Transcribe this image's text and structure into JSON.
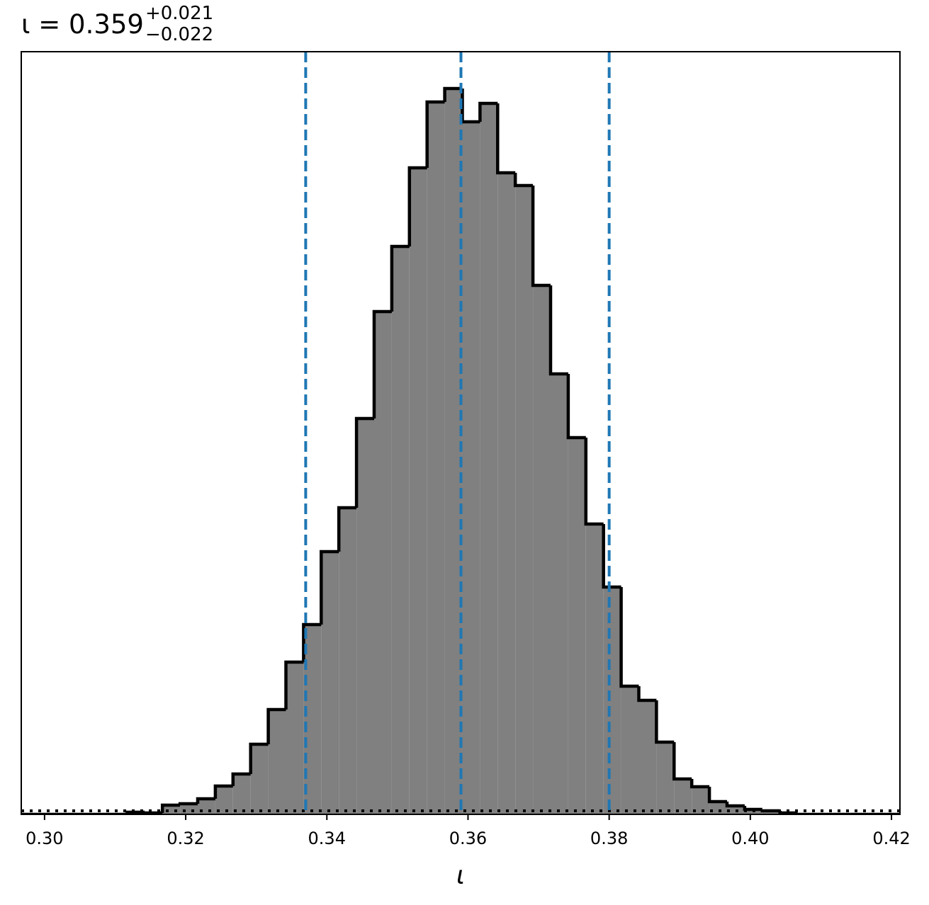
{
  "chart_data": {
    "type": "histogram",
    "title": {
      "main": "ι = 0.359",
      "upper": "+0.021",
      "lower": "−0.022"
    },
    "xlabel": "ι",
    "bins": [
      0.2967,
      0.2992,
      0.3017,
      0.3042,
      0.3067,
      0.3092,
      0.3117,
      0.3142,
      0.3167,
      0.3192,
      0.3217,
      0.3242,
      0.3267,
      0.3292,
      0.3317,
      0.3342,
      0.3367,
      0.3392,
      0.3417,
      0.3442,
      0.3467,
      0.3492,
      0.3517,
      0.3542,
      0.3567,
      0.3592,
      0.3617,
      0.3642,
      0.3667,
      0.3692,
      0.3717,
      0.3742,
      0.3767,
      0.3792,
      0.3817,
      0.3842,
      0.3867,
      0.3892,
      0.3917,
      0.3942,
      0.3967,
      0.3992,
      0.4017,
      0.4042,
      0.4067,
      0.4092,
      0.4117,
      0.4142,
      0.4167,
      0.4192,
      0.4217
    ],
    "values": [
      0,
      0,
      0,
      0,
      0,
      0,
      3,
      2,
      13,
      15,
      22,
      40,
      57,
      99,
      148,
      215,
      268,
      371,
      433,
      559,
      710,
      802,
      913,
      1006,
      1025,
      978,
      1004,
      906,
      888,
      747,
      622,
      532,
      410,
      321,
      181,
      161,
      102,
      50,
      39,
      18,
      12,
      7,
      5,
      2,
      0,
      0,
      0,
      0,
      0,
      0
    ],
    "color": "#808080",
    "edgecolor": "#000000",
    "quantiles": [
      0.337,
      0.359,
      0.38
    ],
    "quantile_color": "#1f77b4",
    "hline": 5,
    "xlim": [
      0.2967,
      0.4212
    ],
    "ylim": [
      0,
      1077
    ],
    "xticks": [
      {
        "value": 0.3,
        "label": "0.30"
      },
      0.32,
      0.34,
      0.36,
      0.38,
      {
        "value": 0.4,
        "label": "0.40"
      },
      0.42
    ]
  }
}
